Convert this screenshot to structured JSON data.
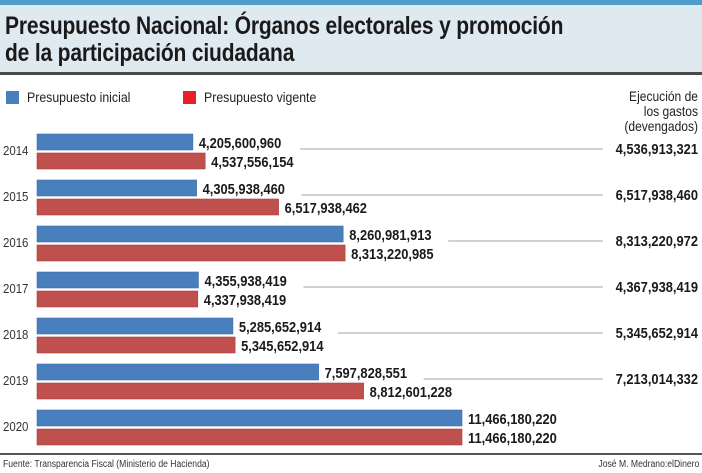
{
  "header": {
    "title_line1": "Presupuesto Nacional: Órganos electorales y promoción",
    "title_line2": "de la participación ciudadana"
  },
  "legend": {
    "inicial": "Presupuesto inicial",
    "vigente": "Presupuesto vigente"
  },
  "execution_header": [
    "Ejecución de",
    "los gastos",
    "(devengados)"
  ],
  "colors": {
    "inicial": "#4a7fbd",
    "vigente": "#c0504d",
    "legend_vigente": "#e8202a",
    "connector": "#b8b8b8"
  },
  "chart_data": {
    "type": "bar",
    "orientation": "horizontal",
    "title": "Presupuesto Nacional: Órganos electorales y promoción de la participación ciudadana",
    "categories": [
      "2014",
      "2015",
      "2016",
      "2017",
      "2018",
      "2019",
      "2020"
    ],
    "series": [
      {
        "name": "Presupuesto inicial",
        "values": [
          4205600960,
          4305938460,
          8260981913,
          4355938419,
          5285652914,
          7597828551,
          11466180220
        ],
        "labels": [
          "4,205,600,960",
          "4,305,938,460",
          "8,260,981,913",
          "4,355,938,419",
          "5,285,652,914",
          "7,597,828,551",
          "11,466,180,220"
        ]
      },
      {
        "name": "Presupuesto vigente",
        "values": [
          4537556154,
          6517938462,
          8313220985,
          4337938419,
          5345652914,
          8812601228,
          11466180220
        ],
        "labels": [
          "4,537,556,154",
          "6,517,938,462",
          "8,313,220,985",
          "4,337,938,419",
          "5,345,652,914",
          "8,812,601,228",
          "11,466,180,220"
        ]
      }
    ],
    "execution": {
      "name": "Ejecución de los gastos (devengados)",
      "labels": [
        "4,536,913,321",
        "6,517,938,460",
        "8,313,220,972",
        "4,367,938,419",
        "5,345,652,914",
        "7,213,014,332",
        null
      ]
    },
    "xlim": [
      0,
      11466180220
    ],
    "grid": false,
    "legend_position": "top-left"
  },
  "footer": {
    "source": "Fuente: Transparencia Fiscal (Ministerio de Hacienda)",
    "credit": "José M. Medrano:elDinero"
  }
}
